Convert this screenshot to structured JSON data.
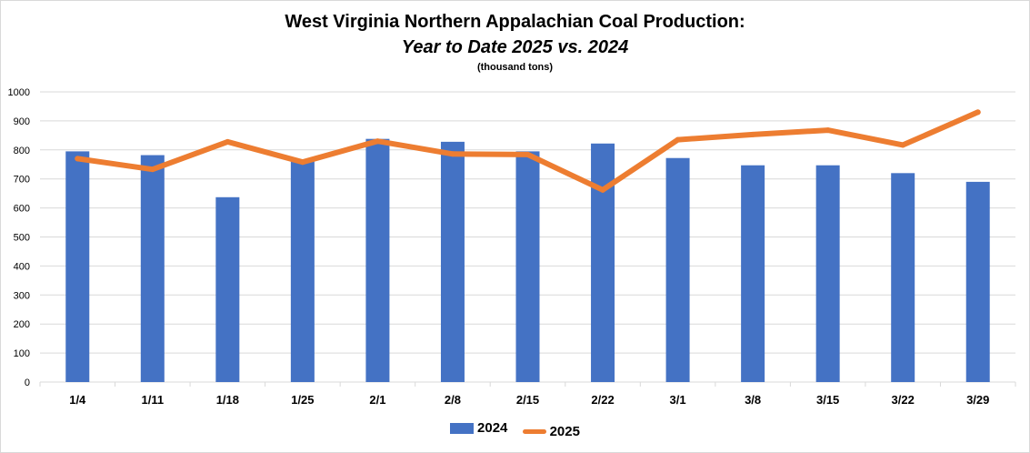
{
  "chart_data": {
    "type": "bar",
    "title": "West Virginia Northern Appalachian Coal Production:",
    "subtitle_italic": "Year to Date 2025 vs. 2024",
    "units_note": "(thousand tons)",
    "categories": [
      "1/4",
      "1/11",
      "1/18",
      "1/25",
      "2/1",
      "2/8",
      "2/15",
      "2/22",
      "3/1",
      "3/8",
      "3/15",
      "3/22",
      "3/29"
    ],
    "ylim": [
      0,
      1000
    ],
    "yticks": [
      0,
      100,
      200,
      300,
      400,
      500,
      600,
      700,
      800,
      900,
      1000
    ],
    "grid": true,
    "legend_position": "bottom",
    "series": [
      {
        "name": "2024",
        "type": "bar",
        "color": "#4472c4",
        "values": [
          795,
          782,
          637,
          765,
          838,
          828,
          795,
          822,
          772,
          747,
          747,
          720,
          690
        ]
      },
      {
        "name": "2025",
        "type": "line",
        "color": "#ed7d31",
        "values": [
          770,
          733,
          828,
          758,
          830,
          786,
          784,
          662,
          835,
          853,
          868,
          817,
          930
        ]
      }
    ]
  }
}
